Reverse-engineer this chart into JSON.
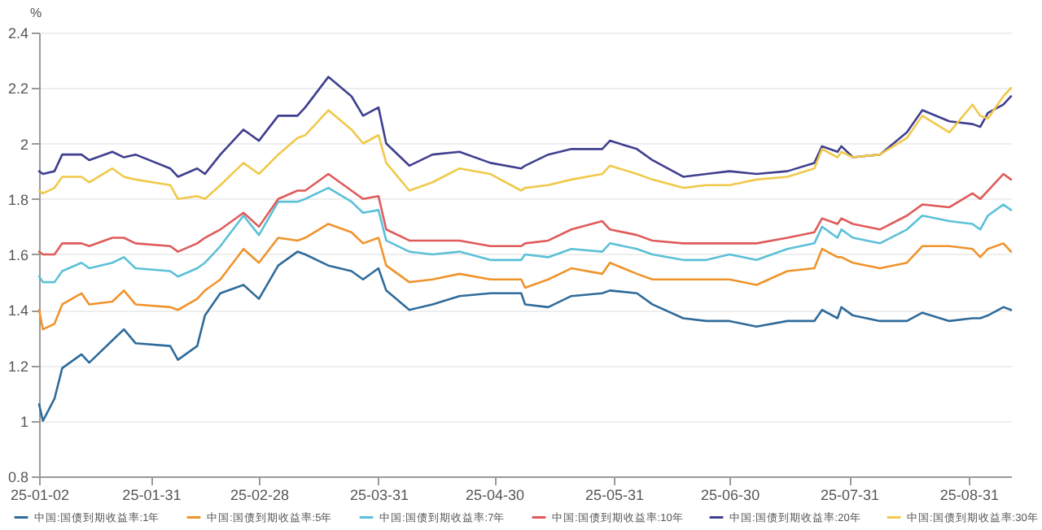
{
  "chart_data": {
    "type": "line",
    "ylabel": "%",
    "x": [
      "--01-02",
      "--01-03",
      "--01-06",
      "--01-08",
      "--01-13",
      "--01-15",
      "--01-21",
      "--01-24",
      "--01-27",
      "--02-05",
      "--02-07",
      "--02-12",
      "--02-14",
      "--02-18",
      "--02-24",
      "--02-28",
      "--03-05",
      "--03-10",
      "--03-12",
      "--03-18",
      "--03-24",
      "--03-27",
      "--03-31",
      "--04-02",
      "--04-08",
      "--04-14",
      "--04-21",
      "--04-29",
      "--05-07",
      "--05-08",
      "--05-14",
      "--05-20",
      "--05-28",
      "--05-30",
      "--06-06",
      "--06-10",
      "--06-18",
      "--06-24",
      "--06-30",
      "--07-07",
      "--07-15",
      "--07-22",
      "--07-24",
      "--07-28",
      "--07-29",
      "--08-01",
      "--08-08",
      "--08-15",
      "--08-19",
      "--08-26",
      "--09-01",
      "--09-03",
      "--09-05",
      "--09-09",
      "--09-11"
    ],
    "series": [
      {
        "name": "中国:国债到期收益率:1年",
        "color": "#2f6b9a",
        "values": [
          1.06,
          1.0,
          1.08,
          1.19,
          1.24,
          1.21,
          1.29,
          1.33,
          1.28,
          1.27,
          1.22,
          1.27,
          1.38,
          1.46,
          1.49,
          1.44,
          1.56,
          1.61,
          1.6,
          1.56,
          1.54,
          1.51,
          1.55,
          1.47,
          1.4,
          1.42,
          1.45,
          1.46,
          1.46,
          1.42,
          1.41,
          1.45,
          1.46,
          1.47,
          1.46,
          1.42,
          1.37,
          1.36,
          1.36,
          1.34,
          1.36,
          1.36,
          1.4,
          1.37,
          1.41,
          1.38,
          1.36,
          1.36,
          1.39,
          1.36,
          1.37,
          1.37,
          1.38,
          1.41,
          1.4
        ]
      },
      {
        "name": "中国:国债到期收益率:5年",
        "color": "#f0932b",
        "values": [
          1.4,
          1.33,
          1.35,
          1.42,
          1.46,
          1.42,
          1.43,
          1.47,
          1.42,
          1.41,
          1.4,
          1.44,
          1.47,
          1.51,
          1.62,
          1.57,
          1.66,
          1.65,
          1.66,
          1.71,
          1.68,
          1.64,
          1.66,
          1.56,
          1.5,
          1.51,
          1.53,
          1.51,
          1.51,
          1.48,
          1.51,
          1.55,
          1.53,
          1.57,
          1.53,
          1.51,
          1.51,
          1.51,
          1.51,
          1.49,
          1.54,
          1.55,
          1.62,
          1.59,
          1.59,
          1.57,
          1.55,
          1.57,
          1.63,
          1.63,
          1.62,
          1.59,
          1.62,
          1.64,
          1.61
        ]
      },
      {
        "name": "中国:国债到期收益率:7年",
        "color": "#5bc0d8",
        "values": [
          1.52,
          1.5,
          1.5,
          1.54,
          1.57,
          1.55,
          1.57,
          1.59,
          1.55,
          1.54,
          1.52,
          1.55,
          1.57,
          1.63,
          1.74,
          1.67,
          1.79,
          1.79,
          1.8,
          1.84,
          1.79,
          1.75,
          1.76,
          1.65,
          1.61,
          1.6,
          1.61,
          1.58,
          1.58,
          1.6,
          1.59,
          1.62,
          1.61,
          1.64,
          1.62,
          1.6,
          1.58,
          1.58,
          1.6,
          1.58,
          1.62,
          1.64,
          1.7,
          1.66,
          1.69,
          1.66,
          1.64,
          1.69,
          1.74,
          1.72,
          1.71,
          1.69,
          1.74,
          1.78,
          1.76
        ]
      },
      {
        "name": "中国:国债到期收益率:10年",
        "color": "#e05a5a",
        "values": [
          1.61,
          1.6,
          1.6,
          1.64,
          1.64,
          1.63,
          1.66,
          1.66,
          1.64,
          1.63,
          1.61,
          1.64,
          1.66,
          1.69,
          1.75,
          1.7,
          1.8,
          1.83,
          1.83,
          1.89,
          1.83,
          1.8,
          1.81,
          1.69,
          1.65,
          1.65,
          1.65,
          1.63,
          1.63,
          1.64,
          1.65,
          1.69,
          1.72,
          1.69,
          1.67,
          1.65,
          1.64,
          1.64,
          1.64,
          1.64,
          1.66,
          1.68,
          1.73,
          1.71,
          1.73,
          1.71,
          1.69,
          1.74,
          1.78,
          1.77,
          1.82,
          1.8,
          1.83,
          1.89,
          1.87
        ]
      },
      {
        "name": "中国:国债到期收益率:20年",
        "color": "#3f3f8f",
        "values": [
          1.9,
          1.89,
          1.9,
          1.96,
          1.96,
          1.94,
          1.97,
          1.95,
          1.96,
          1.91,
          1.88,
          1.91,
          1.89,
          1.96,
          2.05,
          2.01,
          2.1,
          2.1,
          2.13,
          2.24,
          2.17,
          2.1,
          2.13,
          2.0,
          1.92,
          1.96,
          1.97,
          1.93,
          1.91,
          1.92,
          1.96,
          1.98,
          1.98,
          2.01,
          1.98,
          1.94,
          1.88,
          1.89,
          1.9,
          1.89,
          1.9,
          1.93,
          1.99,
          1.97,
          1.99,
          1.95,
          1.96,
          2.04,
          2.12,
          2.08,
          2.07,
          2.06,
          2.11,
          2.14,
          2.17
        ]
      },
      {
        "name": "中国:国债到期收益率:30年",
        "color": "#f0c94a",
        "values": [
          1.83,
          1.82,
          1.84,
          1.88,
          1.88,
          1.86,
          1.91,
          1.88,
          1.87,
          1.85,
          1.8,
          1.81,
          1.8,
          1.85,
          1.93,
          1.89,
          1.96,
          2.02,
          2.03,
          2.12,
          2.05,
          2.0,
          2.03,
          1.93,
          1.83,
          1.86,
          1.91,
          1.89,
          1.83,
          1.84,
          1.85,
          1.87,
          1.89,
          1.92,
          1.89,
          1.87,
          1.84,
          1.85,
          1.85,
          1.87,
          1.88,
          1.91,
          1.98,
          1.95,
          1.97,
          1.95,
          1.96,
          2.02,
          2.1,
          2.04,
          2.14,
          2.1,
          2.09,
          2.17,
          2.2
        ]
      }
    ],
    "xlim": [
      "--01-02",
      "--09-11"
    ],
    "xticks": [
      {
        "value": "--01-02",
        "label": "25-01-02"
      },
      {
        "value": "--01-31",
        "label": "25-01-31"
      },
      {
        "value": "--02-28",
        "label": "25-02-28"
      },
      {
        "value": "--03-31",
        "label": "25-03-31"
      },
      {
        "value": "--04-30",
        "label": "25-04-30"
      },
      {
        "value": "--05-31",
        "label": "25-05-31"
      },
      {
        "value": "--06-30",
        "label": "25-06-30"
      },
      {
        "value": "--07-31",
        "label": "25-07-31"
      },
      {
        "value": "--08-31",
        "label": "25-08-31"
      }
    ],
    "ylim": [
      0.8,
      2.4
    ],
    "yticks": [
      0.8,
      1,
      1.2,
      1.4,
      1.6,
      1.8,
      2,
      2.2,
      2.4
    ],
    "grid": "y",
    "legend": "bottom",
    "marker": "none",
    "line_style": "solid"
  }
}
